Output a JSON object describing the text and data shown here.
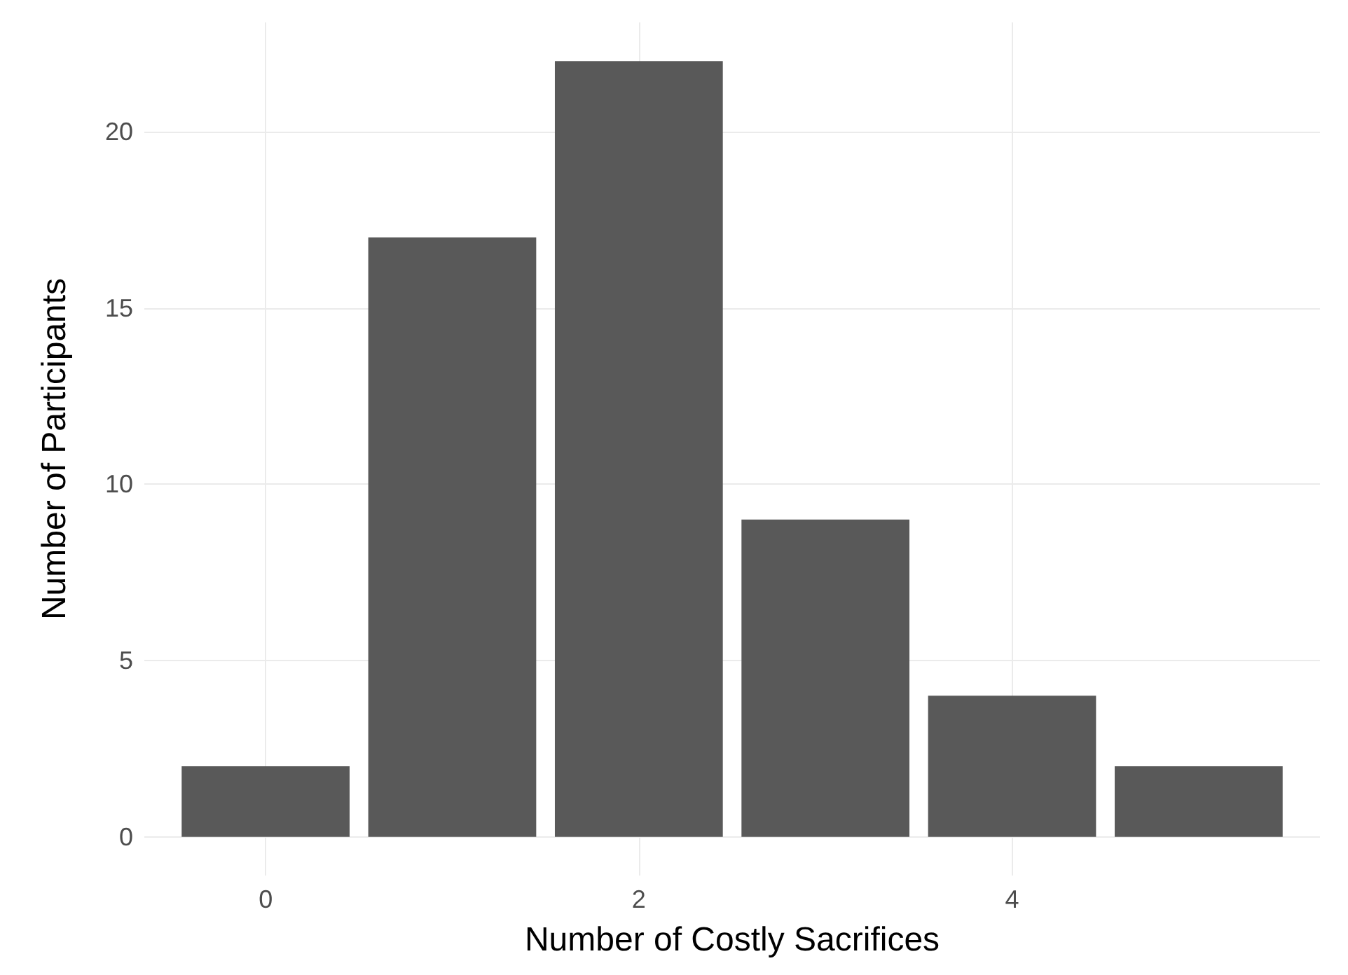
{
  "chart_data": {
    "type": "bar",
    "xlabel": "Number of Costly Sacrifices",
    "ylabel": "Number of Participants",
    "x": [
      0,
      1,
      2,
      3,
      4,
      5
    ],
    "values": [
      2,
      17,
      22,
      9,
      4,
      2
    ],
    "color": "#595959",
    "xlim": [
      -0.65,
      5.65
    ],
    "xticks": [
      0,
      2,
      4
    ],
    "ylim": [
      -1.1,
      23.1
    ],
    "yticks": [
      0,
      5,
      10,
      15,
      20
    ],
    "grid": true
  }
}
